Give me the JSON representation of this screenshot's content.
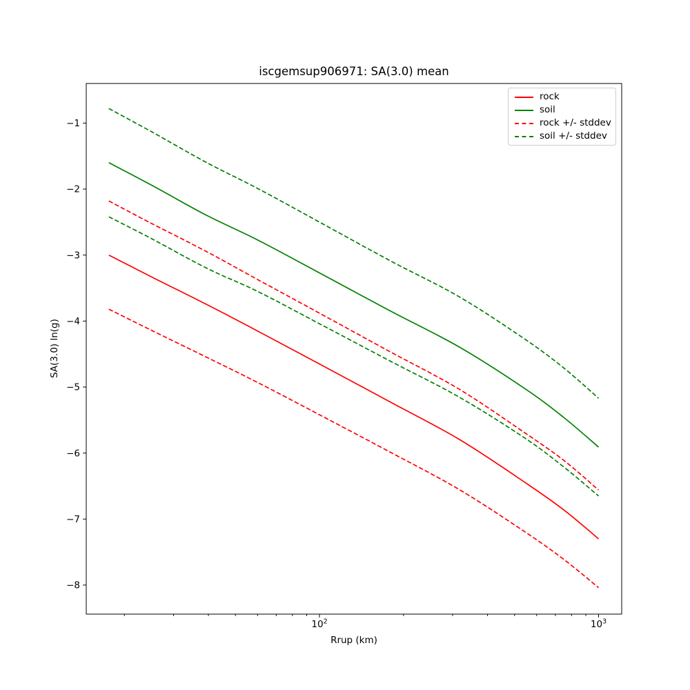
{
  "title": "iscgemsup906971: SA(3.0) mean",
  "axes": {
    "xlabel": "Rrup (km)",
    "ylabel": "SA(3.0) ln(g)",
    "x_major_ticks": [
      {
        "value": 100,
        "base": "10",
        "exp": "2"
      },
      {
        "value": 1000,
        "base": "10",
        "exp": "3"
      }
    ],
    "x_minor_ticks": [
      20,
      30,
      40,
      50,
      60,
      70,
      80,
      90,
      200,
      300,
      400,
      500,
      600,
      700,
      800,
      900
    ],
    "y_ticks": [
      {
        "value": -1,
        "label": "−1"
      },
      {
        "value": -2,
        "label": "−2"
      },
      {
        "value": -3,
        "label": "−3"
      },
      {
        "value": -4,
        "label": "−4"
      },
      {
        "value": -5,
        "label": "−5"
      },
      {
        "value": -6,
        "label": "−6"
      },
      {
        "value": -7,
        "label": "−7"
      },
      {
        "value": -8,
        "label": "−8"
      }
    ]
  },
  "legend": {
    "items": [
      {
        "label": "rock",
        "color": "#ff0000",
        "style": "solid"
      },
      {
        "label": "soil",
        "color": "#008000",
        "style": "solid"
      },
      {
        "label": "rock +/- stddev",
        "color": "#ff0000",
        "style": "dashed"
      },
      {
        "label": "soil +/- stddev",
        "color": "#008000",
        "style": "dashed"
      }
    ]
  },
  "colors": {
    "rock": "#ff0000",
    "soil": "#008000",
    "axis": "#000000",
    "legend_border": "#cccccc",
    "background": "#ffffff"
  },
  "chart_data": {
    "type": "line",
    "title": "iscgemsup906971: SA(3.0) mean",
    "xlabel": "Rrup (km)",
    "ylabel": "SA(3.0) ln(g)",
    "xscale": "log",
    "grid": false,
    "legend_position": "upper right",
    "xlim": [
      14.6,
      1210
    ],
    "ylim": [
      -8.44,
      -0.4
    ],
    "x": [
      17.6,
      25,
      39.5,
      60,
      100,
      180,
      316,
      543,
      750,
      1000
    ],
    "stddev": [
      0.82,
      0.81,
      0.8,
      0.78,
      0.77,
      0.76,
      0.76,
      0.75,
      0.75,
      0.74
    ],
    "series": [
      {
        "name": "rock",
        "slug": "rock",
        "color": "#ff0000",
        "dash": "solid",
        "values": [
          -3.0,
          -3.33,
          -3.75,
          -4.15,
          -4.65,
          -5.23,
          -5.79,
          -6.44,
          -6.86,
          -7.3
        ]
      },
      {
        "name": "soil",
        "slug": "soil",
        "color": "#008000",
        "dash": "solid",
        "values": [
          -1.6,
          -1.94,
          -2.4,
          -2.77,
          -3.27,
          -3.85,
          -4.39,
          -5.02,
          -5.46,
          -5.91
        ]
      },
      {
        "name": "rock + stddev",
        "slug": "rock-plus-stddev",
        "color": "#ff0000",
        "dash": "dashed",
        "values": [
          -2.18,
          -2.52,
          -2.95,
          -3.37,
          -3.88,
          -4.47,
          -5.03,
          -5.69,
          -6.11,
          -6.56
        ]
      },
      {
        "name": "rock - stddev",
        "slug": "rock-minus-stddev",
        "color": "#ff0000",
        "dash": "dashed",
        "values": [
          -3.82,
          -4.14,
          -4.55,
          -4.93,
          -5.42,
          -5.99,
          -6.55,
          -7.19,
          -7.61,
          -8.04
        ]
      },
      {
        "name": "soil + stddev",
        "slug": "soil-plus-stddev",
        "color": "#008000",
        "dash": "dashed",
        "values": [
          -0.78,
          -1.13,
          -1.6,
          -1.99,
          -2.5,
          -3.09,
          -3.63,
          -4.27,
          -4.71,
          -5.17
        ]
      },
      {
        "name": "soil - stddev",
        "slug": "soil-minus-stddev",
        "color": "#008000",
        "dash": "dashed",
        "values": [
          -2.42,
          -2.75,
          -3.2,
          -3.55,
          -4.04,
          -4.61,
          -5.15,
          -5.77,
          -6.21,
          -6.65
        ]
      }
    ]
  }
}
